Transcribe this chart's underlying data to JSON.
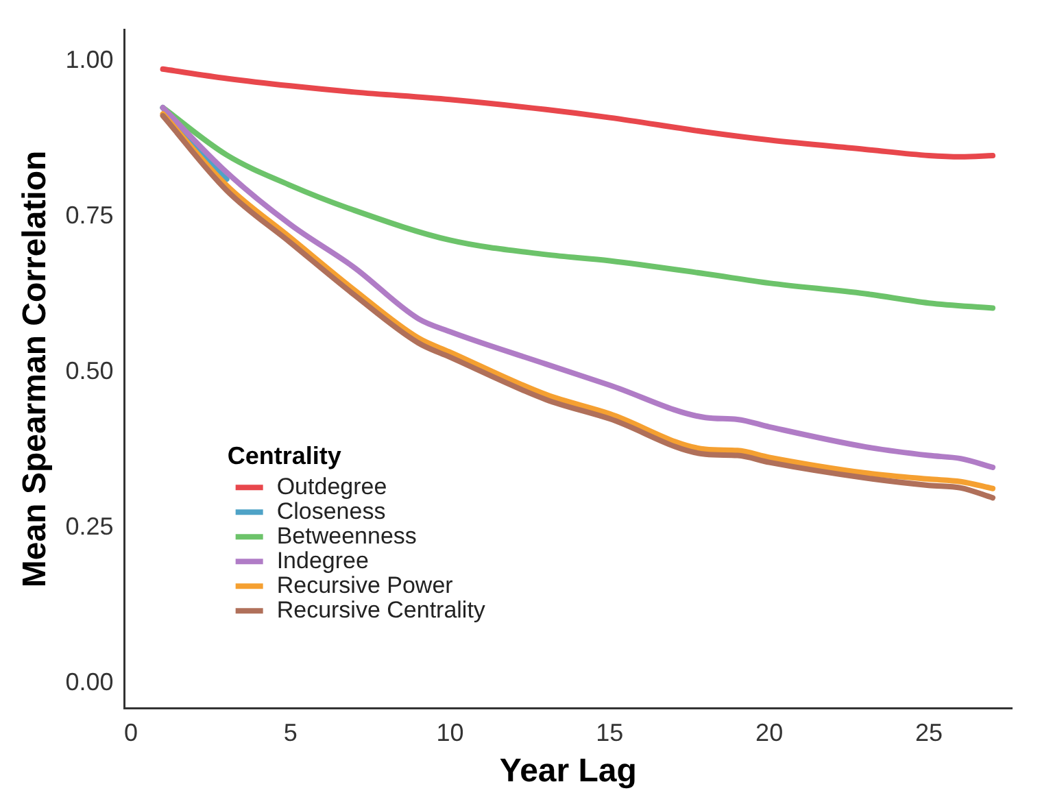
{
  "chart_data": {
    "type": "line",
    "xlabel": "Year Lag",
    "ylabel": "Mean Spearman Correlation",
    "legend_title": "Centrality",
    "legend": "bottom left",
    "grid": false,
    "marker": "none",
    "line_style": "solid",
    "xlim": [
      -0.2,
      27.6
    ],
    "xticks": [
      0,
      5,
      10,
      15,
      20,
      25
    ],
    "ylim": [
      -0.04,
      1.05
    ],
    "yticks": [
      {
        "value": 0,
        "label": "0.00"
      },
      {
        "value": 0.25,
        "label": "0.25"
      },
      {
        "value": 0.5,
        "label": "0.50"
      },
      {
        "value": 0.75,
        "label": "0.75"
      },
      {
        "value": 1,
        "label": "1.00"
      }
    ],
    "series": [
      {
        "name": "Outdegree",
        "color": "#e8474c",
        "x": [
          1,
          3,
          5,
          7,
          10,
          13,
          15,
          18,
          20,
          23,
          25,
          26,
          27
        ],
        "values": [
          0.987,
          0.972,
          0.96,
          0.95,
          0.938,
          0.922,
          0.909,
          0.886,
          0.873,
          0.858,
          0.848,
          0.846,
          0.848
        ]
      },
      {
        "name": "Closeness",
        "color": "#4fa3c7",
        "x": [
          1,
          2,
          3
        ],
        "values": [
          0.925,
          0.862,
          0.81
        ]
      },
      {
        "name": "Betweenness",
        "color": "#6cc36a",
        "x": [
          1,
          3,
          5,
          7,
          10,
          13,
          15,
          18,
          20,
          23,
          25,
          27
        ],
        "values": [
          0.925,
          0.849,
          0.8,
          0.76,
          0.712,
          0.689,
          0.679,
          0.658,
          0.643,
          0.626,
          0.611,
          0.603
        ]
      },
      {
        "name": "Indegree",
        "color": "#b07cc6",
        "x": [
          1,
          3,
          5,
          7,
          9,
          10,
          13,
          15,
          18,
          19,
          20,
          23,
          25,
          26,
          27
        ],
        "values": [
          0.925,
          0.821,
          0.737,
          0.668,
          0.586,
          0.565,
          0.513,
          0.479,
          0.427,
          0.424,
          0.412,
          0.38,
          0.366,
          0.361,
          0.347
        ]
      },
      {
        "name": "Recursive Power",
        "color": "#f5a031",
        "x": [
          1,
          3,
          5,
          7,
          9,
          10,
          13,
          15,
          18,
          19,
          20,
          23,
          25,
          26,
          27
        ],
        "values": [
          0.915,
          0.8,
          0.716,
          0.632,
          0.555,
          0.532,
          0.464,
          0.433,
          0.376,
          0.374,
          0.363,
          0.338,
          0.328,
          0.324,
          0.313
        ]
      },
      {
        "name": "Recursive Centrality",
        "color": "#b0705a",
        "x": [
          1,
          3,
          5,
          7,
          9,
          10,
          13,
          15,
          18,
          19,
          20,
          23,
          25,
          26,
          27
        ],
        "values": [
          0.912,
          0.792,
          0.708,
          0.624,
          0.547,
          0.524,
          0.456,
          0.425,
          0.368,
          0.366,
          0.355,
          0.33,
          0.318,
          0.314,
          0.298
        ]
      }
    ]
  }
}
